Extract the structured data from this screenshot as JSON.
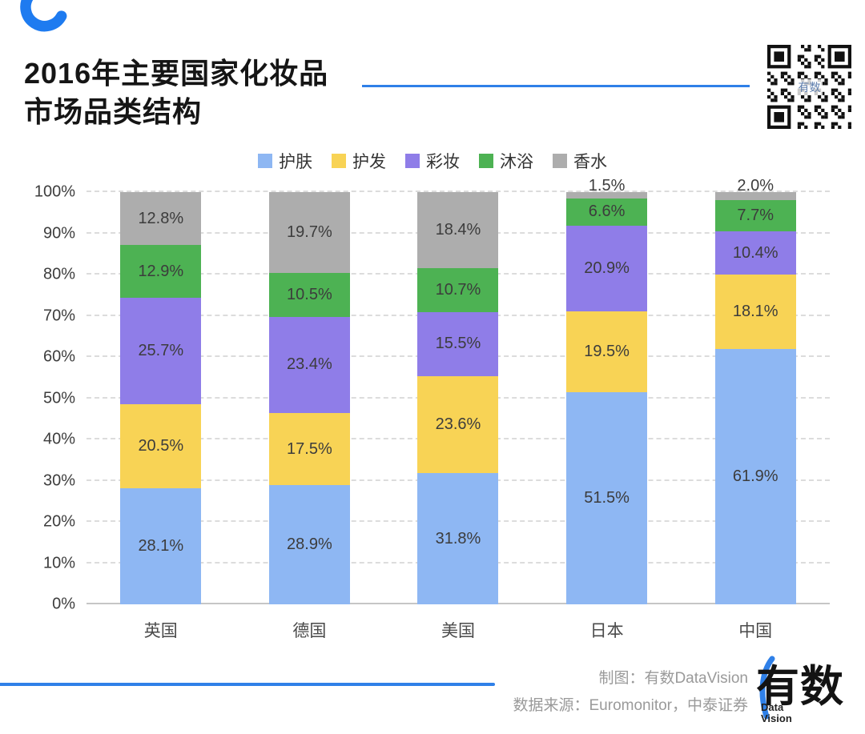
{
  "page": {
    "accent_blue": "#2F80E8",
    "background": "#ffffff"
  },
  "header": {
    "title_line1": "2016年主要国家化妆品",
    "title_line2": "市场品类结构"
  },
  "qr": {
    "center_text": "有数"
  },
  "chart_data": {
    "type": "bar",
    "subtype": "stacked_percent",
    "title": "2016年主要国家化妆品市场品类结构",
    "categories": [
      "英国",
      "德国",
      "美国",
      "日本",
      "中国"
    ],
    "series": [
      {
        "name": "护肤",
        "color": "#8EB7F3",
        "values": [
          28.1,
          28.9,
          31.8,
          51.5,
          61.9
        ]
      },
      {
        "name": "护发",
        "color": "#F8D355",
        "values": [
          20.5,
          17.5,
          23.6,
          19.5,
          18.1
        ]
      },
      {
        "name": "彩妆",
        "color": "#8F7DE8",
        "values": [
          25.7,
          23.4,
          15.5,
          20.9,
          10.4
        ]
      },
      {
        "name": "沐浴",
        "color": "#4DB253",
        "values": [
          12.9,
          10.5,
          10.7,
          6.6,
          7.7
        ]
      },
      {
        "name": "香水",
        "color": "#ADADAD",
        "values": [
          12.8,
          19.7,
          18.4,
          1.5,
          2.0
        ]
      }
    ],
    "y_ticks": [
      "0%",
      "10%",
      "20%",
      "30%",
      "40%",
      "50%",
      "60%",
      "70%",
      "80%",
      "90%",
      "100%"
    ],
    "ylim": [
      0,
      100
    ],
    "legend_position": "top",
    "grid": "dashed-horizontal",
    "label_format": "percent_one_decimal",
    "outside_label_threshold": 4
  },
  "footer": {
    "credit_line1": "制图：有数DataVision",
    "credit_line2": "数据来源：Euromonitor，中泰证券",
    "logo_text": "有数",
    "logo_sub_line1": "Data",
    "logo_sub_line2": "Vision"
  }
}
